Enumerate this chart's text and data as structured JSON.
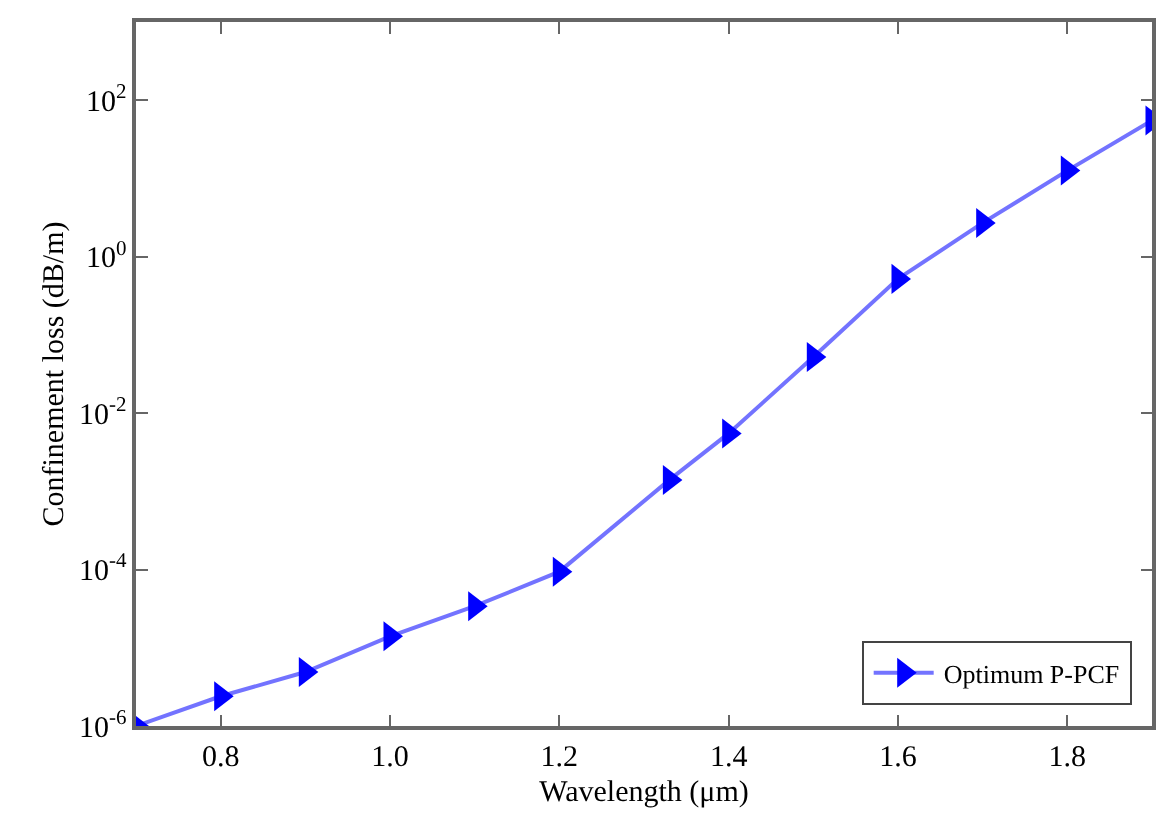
{
  "chart_data": {
    "type": "line",
    "xlabel": "Wavelength (μm)",
    "ylabel": "Confinement loss (dB/m)",
    "log": "y",
    "legend": "bottom right",
    "marker": "triangle",
    "line_style": "solid",
    "xlim": [
      0.7,
      1.9
    ],
    "xticks": [
      0.8,
      {
        "value": 1.0,
        "label": "1.0"
      },
      1.2,
      1.4,
      1.6,
      1.8
    ],
    "ylim": [
      1e-06,
      1000
    ],
    "yticks": [
      {
        "value": 1e-06,
        "label": "10$^{-6}$"
      },
      {
        "value": 0.0001,
        "label": "10$^{-4}$"
      },
      {
        "value": 0.01,
        "label": "10$^{-2}$"
      },
      {
        "value": 1,
        "label": "10$^{0}$"
      },
      {
        "value": 100,
        "label": "10$^{2}$"
      }
    ],
    "series": [
      {
        "name": "Optimum P-PCF",
        "color": "#0000ff",
        "x": [
          0.7,
          0.8,
          0.9,
          1.0,
          1.1,
          1.2,
          1.33,
          1.4,
          1.5,
          1.6,
          1.7,
          1.8,
          1.9
        ],
        "values": [
          1e-06,
          2.4e-06,
          4.9e-06,
          1.4e-05,
          3.4e-05,
          9.4e-05,
          0.0014,
          0.0055,
          0.052,
          0.52,
          2.7,
          12.6,
          55
        ]
      }
    ]
  }
}
